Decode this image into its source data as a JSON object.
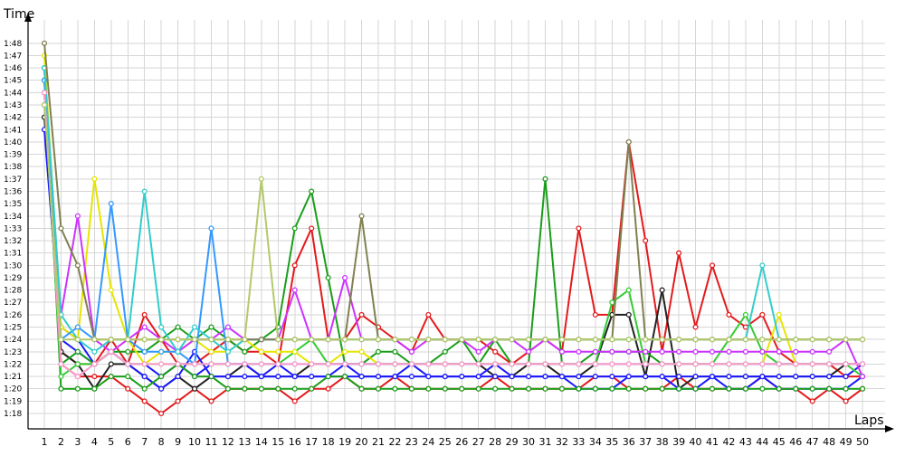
{
  "chart_data": {
    "type": "line",
    "ylabel": "Time",
    "xlabel": "Laps",
    "xlim": [
      1,
      50
    ],
    "ylim": [
      77,
      110
    ],
    "y_tick_labels": [
      "1:18",
      "1:19",
      "1:20",
      "1:21",
      "1:22",
      "1:23",
      "1:24",
      "1:25",
      "1:26",
      "1:27",
      "1:28",
      "1:29",
      "1:30",
      "1:31",
      "1:32",
      "1:33",
      "1:34",
      "1:35",
      "1:36",
      "1:37",
      "1:38",
      "1:39",
      "1:40",
      "1:41",
      "1:42",
      "1:43",
      "1:44",
      "1:45",
      "1:46",
      "1:47",
      "1:48"
    ],
    "y_tick_values": [
      78,
      79,
      80,
      81,
      82,
      83,
      84,
      85,
      86,
      87,
      88,
      89,
      90,
      91,
      92,
      93,
      94,
      95,
      96,
      97,
      98,
      99,
      100,
      101,
      102,
      103,
      104,
      105,
      106,
      107,
      108
    ],
    "x_tick_labels": [
      "1",
      "2",
      "3",
      "4",
      "5",
      "6",
      "7",
      "8",
      "9",
      "10",
      "11",
      "12",
      "13",
      "14",
      "15",
      "16",
      "17",
      "18",
      "19",
      "20",
      "21",
      "22",
      "23",
      "24",
      "25",
      "26",
      "27",
      "28",
      "29",
      "30",
      "31",
      "32",
      "33",
      "34",
      "35",
      "36",
      "37",
      "38",
      "39",
      "40",
      "41",
      "42",
      "43",
      "44",
      "45",
      "46",
      "47",
      "48",
      "49",
      "50"
    ],
    "grid": true,
    "series": [
      {
        "color": "#e41a1c",
        "values": [
          106,
          82,
          81,
          81,
          81,
          80,
          79,
          78,
          79,
          80,
          79,
          80,
          80,
          80,
          80,
          79,
          80,
          80,
          81,
          80,
          80,
          81,
          80,
          80,
          80,
          80,
          80,
          81,
          80,
          80,
          80,
          80,
          80,
          81,
          81,
          80,
          80,
          80,
          81,
          80,
          80,
          80,
          80,
          81,
          80,
          80,
          79,
          80,
          79,
          80
        ]
      },
      {
        "color": "#e41a1c",
        "values": [
          105,
          83,
          82,
          82,
          84,
          82,
          86,
          84,
          82,
          82,
          83,
          84,
          83,
          83,
          82,
          90,
          93,
          84,
          84,
          86,
          85,
          84,
          83,
          86,
          84,
          84,
          84,
          83,
          82,
          83,
          84,
          83,
          93,
          86,
          86,
          100,
          92,
          83,
          91,
          85,
          90,
          86,
          85,
          86,
          83,
          82,
          82,
          82,
          81,
          81
        ]
      },
      {
        "color": "#222222",
        "values": [
          102,
          83,
          82,
          80,
          82,
          82,
          81,
          80,
          81,
          80,
          81,
          81,
          82,
          81,
          81,
          81,
          82,
          82,
          82,
          82,
          82,
          82,
          82,
          82,
          82,
          82,
          82,
          81,
          81,
          82,
          82,
          81,
          81,
          82,
          86,
          86,
          81,
          88,
          80,
          81,
          81,
          81,
          81,
          81,
          81,
          81,
          81,
          81,
          82,
          82
        ]
      },
      {
        "color": "#1a1aff",
        "values": [
          101,
          84,
          83,
          82,
          83,
          82,
          81,
          80,
          81,
          83,
          81,
          81,
          81,
          81,
          81,
          81,
          81,
          81,
          81,
          81,
          81,
          81,
          81,
          81,
          81,
          81,
          81,
          81,
          81,
          81,
          81,
          81,
          81,
          81,
          81,
          81,
          81,
          81,
          81,
          81,
          81,
          81,
          81,
          81,
          81,
          81,
          81,
          81,
          81,
          82
        ]
      },
      {
        "color": "#1a1aff",
        "values": [
          103,
          85,
          84,
          82,
          83,
          82,
          82,
          81,
          82,
          81,
          82,
          82,
          82,
          81,
          82,
          81,
          81,
          81,
          82,
          81,
          81,
          81,
          82,
          81,
          81,
          81,
          81,
          82,
          81,
          81,
          81,
          81,
          80,
          80,
          80,
          81,
          81,
          81,
          80,
          80,
          81,
          80,
          80,
          81,
          80,
          80,
          80,
          80,
          80,
          81
        ]
      },
      {
        "color": "#1a9e1a",
        "values": [
          106,
          80,
          80,
          80,
          81,
          81,
          80,
          81,
          82,
          81,
          81,
          80,
          80,
          80,
          80,
          80,
          80,
          81,
          81,
          80,
          80,
          80,
          80,
          80,
          80,
          80,
          80,
          80,
          80,
          80,
          80,
          80,
          80,
          80,
          80,
          80,
          80,
          80,
          80,
          80,
          80,
          80,
          80,
          80,
          80,
          80,
          80,
          80,
          80,
          80
        ]
      },
      {
        "color": "#1a9e1a",
        "values": [
          105,
          82,
          83,
          82,
          83,
          83,
          83,
          84,
          85,
          84,
          85,
          84,
          83,
          84,
          85,
          93,
          96,
          89,
          82,
          82,
          83,
          83,
          82,
          82,
          83,
          84,
          82,
          84,
          82,
          82,
          97,
          82,
          82,
          83,
          83,
          83,
          83,
          82,
          82,
          82,
          82,
          82,
          82,
          82,
          82,
          82,
          82,
          82,
          82,
          82
        ]
      },
      {
        "color": "#33cc33",
        "values": [
          104,
          81,
          82,
          82,
          83,
          82,
          82,
          82,
          82,
          82,
          82,
          82,
          82,
          82,
          82,
          83,
          84,
          82,
          82,
          82,
          82,
          82,
          82,
          82,
          82,
          82,
          82,
          82,
          82,
          82,
          82,
          82,
          82,
          82,
          87,
          88,
          82,
          82,
          82,
          82,
          82,
          84,
          86,
          83,
          82,
          82,
          82,
          82,
          82,
          81
        ]
      },
      {
        "color": "#e5e500",
        "values": [
          107,
          85,
          84,
          97,
          88,
          84,
          82,
          83,
          83,
          84,
          83,
          83,
          84,
          83,
          83,
          83,
          82,
          82,
          83,
          83,
          82,
          82,
          82,
          82,
          82,
          82,
          82,
          82,
          82,
          82,
          82,
          82,
          82,
          82,
          82,
          82,
          82,
          82,
          82,
          82,
          82,
          82,
          82,
          82,
          86,
          82,
          82,
          82,
          82,
          82
        ]
      },
      {
        "color": "#cc33ff",
        "values": [
          104,
          86,
          94,
          84,
          83,
          84,
          85,
          84,
          83,
          84,
          84,
          85,
          84,
          84,
          84,
          88,
          84,
          84,
          89,
          84,
          84,
          84,
          83,
          84,
          84,
          84,
          83,
          84,
          84,
          83,
          84,
          83,
          83,
          83,
          83,
          83,
          83,
          83,
          83,
          83,
          83,
          83,
          83,
          83,
          83,
          83,
          83,
          83,
          84,
          81
        ]
      },
      {
        "color": "#3399ff",
        "values": [
          105,
          84,
          85,
          84,
          95,
          84,
          83,
          83,
          83,
          82,
          93,
          82,
          82,
          82,
          82,
          82,
          82,
          82,
          82,
          82,
          82,
          82,
          82,
          82,
          82,
          82,
          82,
          82,
          82,
          82,
          82,
          82,
          82,
          82,
          82,
          82,
          82,
          82,
          82,
          82,
          82,
          82,
          82,
          82,
          82,
          82,
          82,
          82,
          82,
          82
        ]
      },
      {
        "color": "#33cccc",
        "values": [
          106,
          86,
          84,
          83,
          84,
          84,
          96,
          85,
          83,
          85,
          84,
          83,
          84,
          84,
          84,
          84,
          84,
          84,
          84,
          84,
          84,
          84,
          84,
          84,
          84,
          84,
          84,
          84,
          84,
          84,
          84,
          84,
          84,
          84,
          84,
          84,
          84,
          84,
          84,
          84,
          84,
          84,
          84,
          90,
          84,
          84,
          84,
          84,
          84,
          84
        ]
      },
      {
        "color": "#ff99cc",
        "values": [
          104,
          82,
          81,
          82,
          83,
          82,
          82,
          82,
          82,
          82,
          82,
          82,
          82,
          82,
          82,
          82,
          82,
          82,
          82,
          82,
          82,
          82,
          82,
          82,
          82,
          82,
          82,
          82,
          82,
          82,
          82,
          82,
          82,
          82,
          82,
          82,
          82,
          82,
          82,
          82,
          82,
          82,
          82,
          82,
          82,
          82,
          82,
          82,
          82,
          82
        ]
      },
      {
        "color": "#808050",
        "values": [
          108,
          93,
          90,
          84,
          84,
          84,
          84,
          84,
          84,
          84,
          84,
          84,
          84,
          84,
          84,
          84,
          84,
          84,
          84,
          94,
          84,
          84,
          84,
          84,
          84,
          84,
          84,
          84,
          84,
          84,
          84,
          84,
          84,
          84,
          84,
          100,
          84,
          84,
          84,
          84,
          84,
          84,
          84,
          84,
          84,
          84,
          84,
          84,
          84,
          84
        ]
      },
      {
        "color": "#b3c96a",
        "values": [
          103,
          84,
          84,
          84,
          84,
          84,
          84,
          84,
          84,
          84,
          84,
          84,
          84,
          97,
          84,
          84,
          84,
          84,
          84,
          84,
          84,
          84,
          84,
          84,
          84,
          84,
          84,
          84,
          84,
          84,
          84,
          84,
          84,
          84,
          84,
          84,
          84,
          84,
          84,
          84,
          84,
          84,
          84,
          84,
          84,
          84,
          84,
          84,
          84,
          84
        ]
      }
    ]
  }
}
